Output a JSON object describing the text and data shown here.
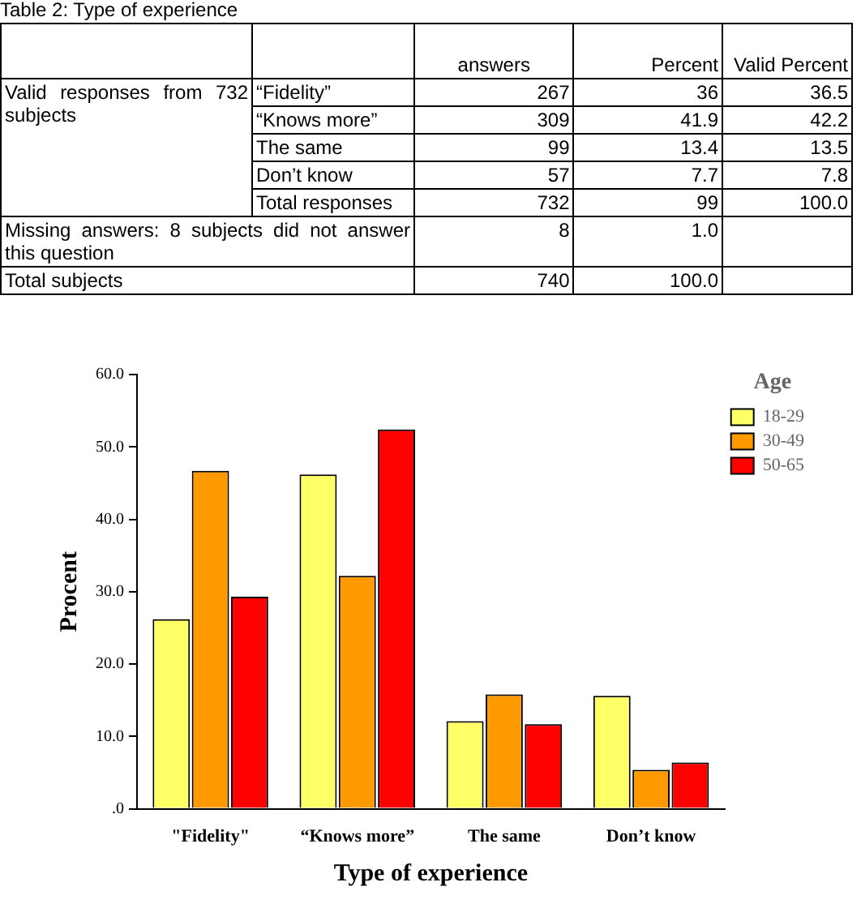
{
  "chart_data": [
    {
      "type": "other",
      "title": "Table 2: Type of experience",
      "annotations": [
        "answers",
        "Percent",
        "Valid Percent",
        "Valid responses from 732 subjects",
        "“Fidelity”",
        "267",
        "36",
        "36.5",
        "“Knows more”",
        "309",
        "41.9",
        "42.2",
        "The same",
        "99",
        "13.4",
        "13.5",
        "Don’t know",
        "57",
        "7.7",
        "7.8",
        "Total responses",
        "732",
        "99",
        "100.0",
        "Missing answers: 8 subjects did not answer this question",
        "8",
        "1.0",
        "Total subjects",
        "740",
        "100.0"
      ]
    },
    {
      "type": "bar",
      "categories": [
        "\"Fidelity\"",
        "“Knows more”",
        "The same",
        "Don’t know"
      ],
      "series": [
        {
          "name": "18-29",
          "color": "#ffff66",
          "values": [
            26.2,
            46.2,
            12.1,
            15.6
          ]
        },
        {
          "name": "30-49",
          "color": "#ff9900",
          "values": [
            46.7,
            32.2,
            15.8,
            5.4
          ]
        },
        {
          "name": "50-65",
          "color": "#ff0000",
          "values": [
            29.3,
            52.4,
            11.7,
            6.4
          ]
        }
      ],
      "ylim": [
        0,
        60
      ],
      "yticks": [
        {
          "value": 0,
          "label": ".0"
        },
        {
          "value": 10,
          "label": "10.0"
        },
        {
          "value": 20,
          "label": "20.0"
        },
        {
          "value": 30,
          "label": "30.0"
        },
        {
          "value": 40,
          "label": "40.0"
        },
        {
          "value": 50,
          "label": "50.0"
        },
        {
          "value": 60,
          "label": "60.0"
        }
      ],
      "xlabel": "Type of experience",
      "ylabel": "Procent",
      "legend_title": "Age",
      "legend": "top right",
      "grid": false
    }
  ]
}
